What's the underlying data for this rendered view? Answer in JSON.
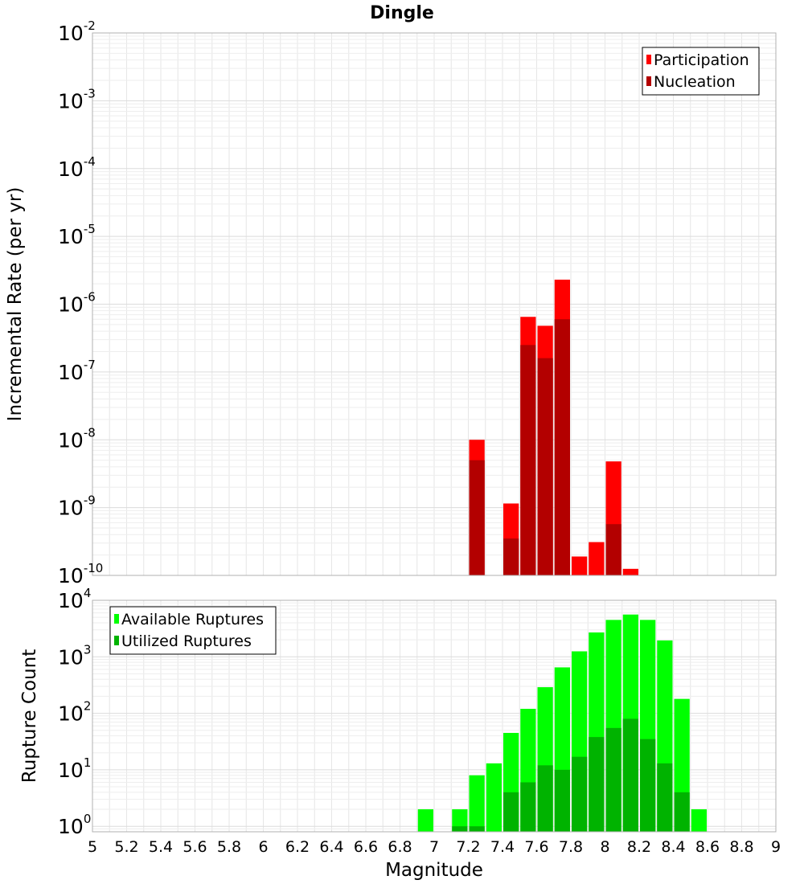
{
  "title": "Dingle",
  "chart_data": [
    {
      "type": "bar",
      "panel": "top",
      "ylabel": "Incremental Rate (per yr)",
      "yscale": "log",
      "ylim": [
        1e-10,
        0.01
      ],
      "xlim": [
        5,
        9
      ],
      "ytick_labels": [
        {
          "base": "10",
          "exp": "-10"
        },
        {
          "base": "10",
          "exp": "-9"
        },
        {
          "base": "10",
          "exp": "-8"
        },
        {
          "base": "10",
          "exp": "-7"
        },
        {
          "base": "10",
          "exp": "-6"
        },
        {
          "base": "10",
          "exp": "-5"
        },
        {
          "base": "10",
          "exp": "-4"
        },
        {
          "base": "10",
          "exp": "-3"
        },
        {
          "base": "10",
          "exp": "-2"
        }
      ],
      "legend": {
        "position": "top-right",
        "entries": [
          "Participation",
          "Nucleation"
        ]
      },
      "grid": true,
      "series": [
        {
          "name": "Participation",
          "color": "#ff0000",
          "x": [
            7.25,
            7.45,
            7.55,
            7.65,
            7.75,
            7.85,
            7.95,
            8.05,
            8.15
          ],
          "values": [
            1e-08,
            1.15e-09,
            6.5e-07,
            4.8e-07,
            2.3e-06,
            1.9e-10,
            3.1e-10,
            4.8e-09,
            1.25e-10
          ]
        },
        {
          "name": "Nucleation",
          "color": "#b30000",
          "x": [
            7.25,
            7.45,
            7.55,
            7.65,
            7.75,
            7.95,
            8.05
          ],
          "values": [
            5e-09,
            3.5e-10,
            2.5e-07,
            1.6e-07,
            6e-07,
            1e-10,
            5.7e-10
          ]
        }
      ]
    },
    {
      "type": "bar",
      "panel": "bottom",
      "xlabel": "Magnitude",
      "ylabel": "Rupture Count",
      "yscale": "log",
      "ylim": [
        0.8,
        10000
      ],
      "xlim": [
        5,
        9
      ],
      "xtick_labels": [
        "5",
        "5.2",
        "5.4",
        "5.6",
        "5.8",
        "6",
        "6.2",
        "6.4",
        "6.6",
        "6.8",
        "7",
        "7.2",
        "7.4",
        "7.6",
        "7.8",
        "8",
        "8.2",
        "8.4",
        "8.6",
        "8.8",
        "9"
      ],
      "ytick_labels": [
        {
          "base": "10",
          "exp": "0"
        },
        {
          "base": "10",
          "exp": "1"
        },
        {
          "base": "10",
          "exp": "2"
        },
        {
          "base": "10",
          "exp": "3"
        },
        {
          "base": "10",
          "exp": "4"
        }
      ],
      "legend": {
        "position": "top-left",
        "entries": [
          "Available Ruptures",
          "Utilized Ruptures"
        ]
      },
      "grid": true,
      "series": [
        {
          "name": "Available Ruptures",
          "color": "#00ff00",
          "x": [
            6.95,
            7.15,
            7.25,
            7.35,
            7.45,
            7.55,
            7.65,
            7.75,
            7.85,
            7.95,
            8.05,
            8.15,
            8.25,
            8.35,
            8.45,
            8.55
          ],
          "values": [
            2,
            2,
            8,
            13,
            45,
            120,
            290,
            650,
            1250,
            2700,
            4500,
            5600,
            4500,
            1950,
            180,
            2
          ]
        },
        {
          "name": "Utilized Ruptures",
          "color": "#00b300",
          "x": [
            7.15,
            7.25,
            7.45,
            7.55,
            7.65,
            7.75,
            7.85,
            7.95,
            8.05,
            8.15,
            8.25,
            8.35,
            8.45
          ],
          "values": [
            1,
            1,
            4,
            6,
            12,
            10,
            17,
            38,
            55,
            80,
            35,
            13,
            4
          ]
        }
      ]
    }
  ]
}
